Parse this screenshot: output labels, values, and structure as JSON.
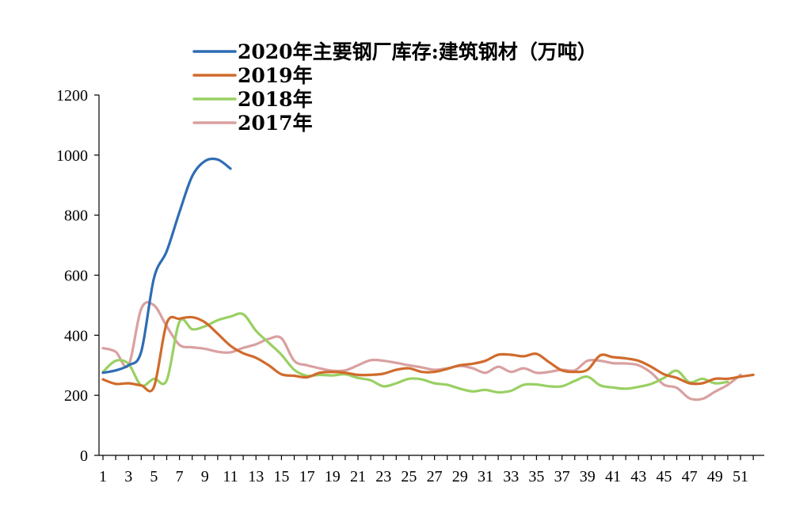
{
  "chart_data": {
    "type": "line",
    "xlabel": "",
    "ylabel": "",
    "xlim": [
      1,
      52
    ],
    "ylim": [
      0,
      1200
    ],
    "y_ticks": [
      "0",
      "200",
      "400",
      "600",
      "800",
      "1000",
      "1200"
    ],
    "x_ticks": [
      "1",
      "3",
      "5",
      "7",
      "9",
      "11",
      "13",
      "15",
      "17",
      "19",
      "21",
      "23",
      "25",
      "27",
      "29",
      "31",
      "33",
      "35",
      "37",
      "39",
      "41",
      "43",
      "45",
      "47",
      "49",
      "51"
    ],
    "grid": false,
    "legend_position": "top",
    "series": [
      {
        "name": "2020年主要钢厂库存:建筑钢材（万吨）",
        "color": "#2e6db4",
        "x": [
          1,
          2,
          3,
          4,
          5,
          6,
          7,
          8,
          9,
          10,
          11
        ],
        "values": [
          275,
          283,
          300,
          345,
          590,
          680,
          810,
          930,
          980,
          985,
          955
        ]
      },
      {
        "name": "2019年",
        "color": "#d06b2c",
        "x": [
          1,
          2,
          3,
          4,
          5,
          6,
          7,
          8,
          9,
          10,
          11,
          12,
          13,
          14,
          15,
          16,
          17,
          18,
          19,
          20,
          21,
          22,
          23,
          24,
          25,
          26,
          27,
          28,
          29,
          30,
          31,
          32,
          33,
          34,
          35,
          36,
          37,
          38,
          39,
          40,
          41,
          42,
          43,
          44,
          45,
          46,
          47,
          48,
          49,
          50,
          51,
          52
        ],
        "values": [
          253,
          238,
          240,
          233,
          228,
          440,
          455,
          460,
          443,
          405,
          365,
          340,
          325,
          300,
          270,
          265,
          260,
          275,
          278,
          275,
          268,
          268,
          272,
          285,
          290,
          278,
          278,
          288,
          300,
          305,
          315,
          335,
          335,
          330,
          338,
          310,
          283,
          278,
          285,
          333,
          327,
          323,
          315,
          295,
          270,
          258,
          240,
          240,
          255,
          255,
          262,
          268
        ]
      },
      {
        "name": "2018年",
        "color": "#99d063",
        "x": [
          1,
          2,
          3,
          4,
          5,
          6,
          7,
          8,
          9,
          10,
          11,
          12,
          13,
          14,
          15,
          16,
          17,
          18,
          19,
          20,
          21,
          22,
          23,
          24,
          25,
          26,
          27,
          28,
          29,
          30,
          31,
          32,
          33,
          34,
          35,
          36,
          37,
          38,
          39,
          40,
          41,
          42,
          43,
          44,
          45,
          46,
          47,
          48,
          49,
          50
        ],
        "values": [
          278,
          315,
          305,
          233,
          255,
          250,
          445,
          420,
          430,
          450,
          462,
          470,
          415,
          375,
          335,
          285,
          265,
          268,
          266,
          270,
          258,
          250,
          230,
          240,
          255,
          253,
          240,
          235,
          222,
          213,
          218,
          210,
          215,
          235,
          236,
          230,
          230,
          248,
          262,
          233,
          226,
          222,
          228,
          238,
          258,
          282,
          243,
          255,
          240,
          245
        ]
      },
      {
        "name": "2017年",
        "color": "#d9a0a0",
        "x": [
          1,
          2,
          3,
          4,
          5,
          6,
          7,
          8,
          9,
          10,
          11,
          12,
          13,
          14,
          15,
          16,
          17,
          18,
          19,
          20,
          21,
          22,
          23,
          24,
          25,
          26,
          27,
          28,
          29,
          30,
          31,
          32,
          33,
          34,
          35,
          36,
          37,
          38,
          39,
          40,
          41,
          42,
          43,
          44,
          45,
          46,
          47,
          48,
          49,
          50,
          51
        ],
        "values": [
          357,
          345,
          300,
          488,
          500,
          430,
          368,
          360,
          355,
          345,
          343,
          358,
          370,
          388,
          390,
          315,
          300,
          290,
          282,
          283,
          300,
          317,
          315,
          308,
          300,
          293,
          285,
          290,
          298,
          290,
          275,
          295,
          278,
          290,
          275,
          278,
          285,
          283,
          315,
          315,
          307,
          306,
          300,
          275,
          235,
          225,
          190,
          188,
          212,
          235,
          268
        ]
      }
    ]
  }
}
